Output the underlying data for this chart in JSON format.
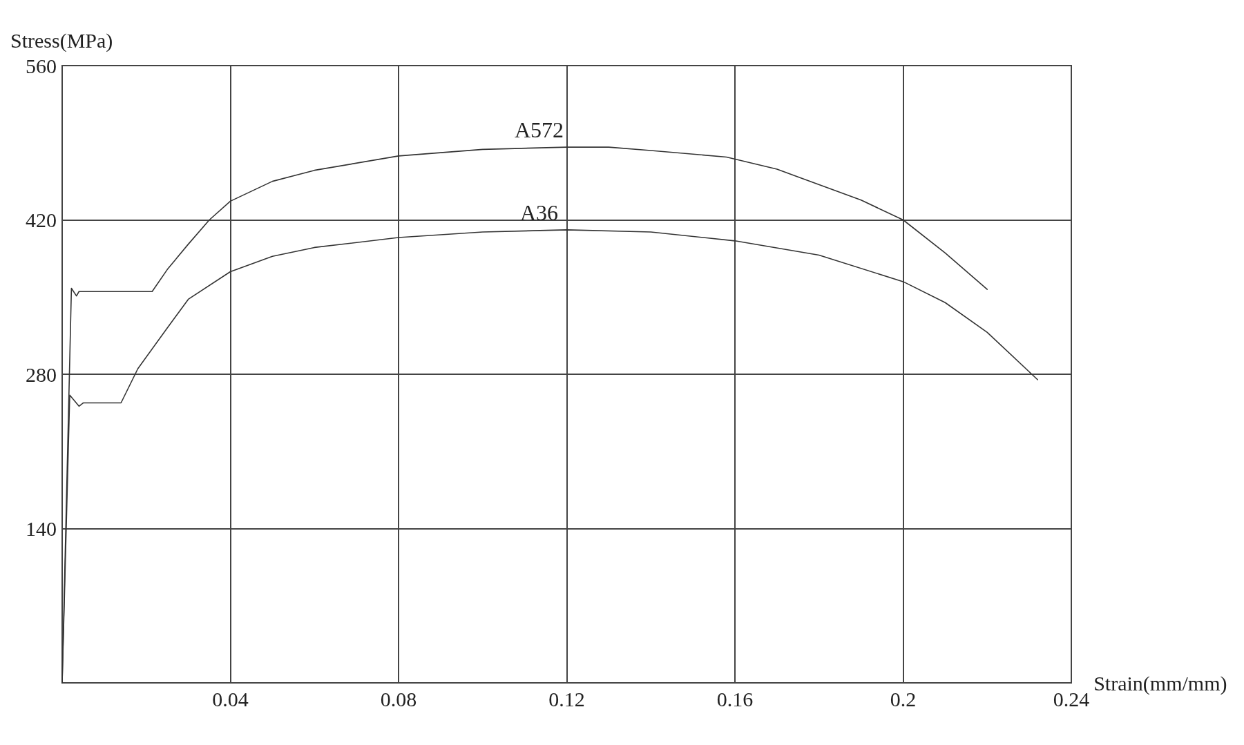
{
  "chart_data": {
    "type": "line",
    "xlabel": "Strain(mm/mm)",
    "ylabel": "Stress(MPa)",
    "xlim": [
      0,
      0.24
    ],
    "xticks": [
      0.04,
      0.08,
      0.12,
      0.16,
      0.2,
      0.24
    ],
    "ylim": [
      0,
      560
    ],
    "yticks": [
      140,
      280,
      420,
      560
    ],
    "grid": true,
    "legend": false,
    "marker": "none",
    "line_style": "solid",
    "series": [
      {
        "name": "A572",
        "color": "#333333",
        "x": [
          0,
          0.0022,
          0.0034,
          0.004,
          0.0214,
          0.025,
          0.03,
          0.035,
          0.04,
          0.05,
          0.06,
          0.08,
          0.1,
          0.12,
          0.13,
          0.14,
          0.158,
          0.17,
          0.19,
          0.2,
          0.21,
          0.22
        ],
        "values": [
          0,
          358,
          351,
          355,
          355,
          375,
          398,
          420,
          437,
          455,
          465,
          478,
          484,
          486,
          486,
          483,
          477,
          466,
          438,
          420,
          390,
          357
        ]
      },
      {
        "name": "A36",
        "color": "#333333",
        "x": [
          0,
          0.0018,
          0.004,
          0.005,
          0.014,
          0.018,
          0.025,
          0.03,
          0.04,
          0.05,
          0.06,
          0.08,
          0.1,
          0.12,
          0.14,
          0.16,
          0.18,
          0.2,
          0.21,
          0.22,
          0.232
        ],
        "values": [
          0,
          261,
          251,
          254,
          254,
          285,
          322,
          348,
          373,
          387,
          395,
          404,
          409,
          411,
          409,
          401,
          388,
          364,
          345,
          318,
          275
        ]
      }
    ]
  }
}
